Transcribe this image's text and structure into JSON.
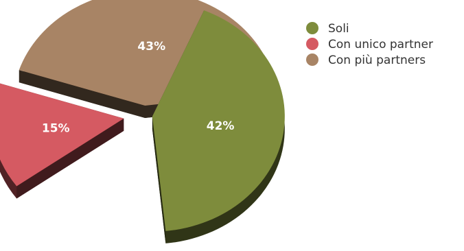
{
  "chart_data": {
    "type": "pie",
    "style": "3d-exploded",
    "legend_position": "top-right",
    "slices": [
      {
        "label": "Soli",
        "value": 42,
        "display": "42%",
        "color": "#7e8c3c"
      },
      {
        "label": "Con unico partner",
        "value": 15,
        "display": "15%",
        "color": "#d55a62"
      },
      {
        "label": "Con più partners",
        "value": 43,
        "display": "43%",
        "color": "#a88465"
      }
    ]
  }
}
